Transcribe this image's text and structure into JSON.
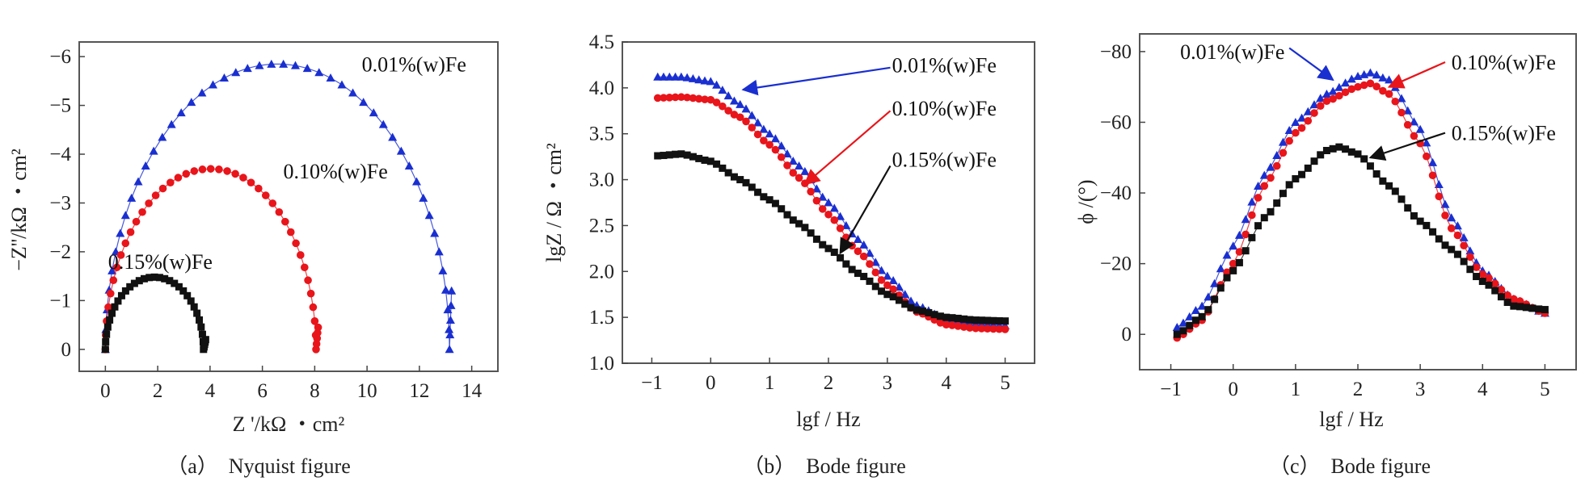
{
  "chart_data": [
    {
      "type": "scatter",
      "panel": "a",
      "caption": "（a）　Nyquist figure",
      "xlabel": "Z '/kΩ ・cm²",
      "ylabel": "−Z''/kΩ ・cm²",
      "xlim": [
        -1,
        15
      ],
      "ylim": [
        0.45,
        -6.3
      ],
      "xticks": [
        0,
        2,
        4,
        6,
        8,
        10,
        12,
        14
      ],
      "yticks": [
        0,
        -1,
        -2,
        -3,
        -4,
        -5,
        -6
      ],
      "xtick_labels": [
        "0",
        "2",
        "4",
        "6",
        "8",
        "10",
        "12",
        "14"
      ],
      "ytick_labels": [
        "0",
        "−1",
        "−2",
        "−3",
        "−4",
        "−5",
        "−6"
      ],
      "series": [
        {
          "name": "0.01%(w)Fe",
          "color": "#1a2fd0",
          "marker": "triangle",
          "params": {
            "R": 13.15,
            "peak": 5.85,
            "tail": 1.2,
            "tailDrop": 0.9,
            "n": 45
          },
          "label": {
            "text": "0.01%(w)Fe",
            "x": 9.8,
            "y": -5.7,
            "anchor": "start"
          }
        },
        {
          "name": "0.10%(w)Fe",
          "color": "#e8151b",
          "marker": "circle",
          "params": {
            "R": 8.05,
            "peak": 3.7,
            "tail": 0.45,
            "tailDrop": 0.3,
            "n": 40
          },
          "label": {
            "text": "0.10%(w)Fe",
            "x": 6.8,
            "y": -3.5,
            "anchor": "start"
          }
        },
        {
          "name": "0.15%(w)Fe",
          "color": "#111111",
          "marker": "square",
          "params": {
            "R": 3.75,
            "peak": 1.48,
            "tail": 0.2,
            "tailDrop": 0.2,
            "n": 30
          },
          "label": {
            "text": "0.15%(w)Fe",
            "x": 2.1,
            "y": -1.65,
            "anchor": "middle"
          }
        }
      ]
    },
    {
      "type": "scatter",
      "panel": "b",
      "caption": "（b）　Bode figure",
      "xlabel": "lgf / Hz",
      "ylabel": "lgZ / Ω ・cm²",
      "xlim": [
        -1.5,
        5.5
      ],
      "ylim": [
        1.0,
        4.5
      ],
      "xticks": [
        -1,
        0,
        1,
        2,
        3,
        4,
        5
      ],
      "yticks": [
        1.0,
        1.5,
        2.0,
        2.5,
        3.0,
        3.5,
        4.0,
        4.5
      ],
      "xtick_labels": [
        "−1",
        "0",
        "1",
        "2",
        "3",
        "4",
        "5"
      ],
      "ytick_labels": [
        "1.0",
        "1.5",
        "2.0",
        "2.5",
        "3.0",
        "3.5",
        "4.0",
        "4.5"
      ],
      "series": [
        {
          "name": "0.01%(w)Fe",
          "color": "#1a2fd0",
          "marker": "triangle",
          "x": [
            -0.9,
            -0.5,
            0,
            0.5,
            1,
            1.5,
            2,
            2.5,
            3,
            3.5,
            4,
            4.5,
            5
          ],
          "y": [
            4.12,
            4.12,
            4.07,
            3.82,
            3.5,
            3.15,
            2.75,
            2.35,
            1.95,
            1.63,
            1.48,
            1.43,
            1.41
          ]
        },
        {
          "name": "0.10%(w)Fe",
          "color": "#e8151b",
          "marker": "circle",
          "x": [
            -0.9,
            -0.5,
            0,
            0.5,
            1,
            1.5,
            2,
            2.5,
            3,
            3.5,
            4,
            4.5,
            5
          ],
          "y": [
            3.89,
            3.9,
            3.87,
            3.68,
            3.38,
            3.02,
            2.62,
            2.22,
            1.85,
            1.56,
            1.42,
            1.38,
            1.37
          ]
        },
        {
          "name": "0.15%(w)Fe",
          "color": "#111111",
          "marker": "square",
          "x": [
            -0.9,
            -0.5,
            0,
            0.5,
            1,
            1.5,
            2,
            2.5,
            3,
            3.5,
            4,
            4.5,
            5
          ],
          "y": [
            3.26,
            3.28,
            3.2,
            3.0,
            2.78,
            2.52,
            2.25,
            1.98,
            1.75,
            1.58,
            1.5,
            1.47,
            1.46
          ]
        }
      ],
      "annotations": [
        {
          "text": "0.01%(w)Fe",
          "color": "#1a2fd0",
          "text_x": 3.08,
          "text_y": 4.25,
          "arrow_from": [
            3.05,
            4.22
          ],
          "arrow_to": [
            0.55,
            3.98
          ]
        },
        {
          "text": "0.10%(w)Fe",
          "color": "#e8151b",
          "text_x": 3.08,
          "text_y": 3.78,
          "arrow_from": [
            3.05,
            3.75
          ],
          "arrow_to": [
            1.6,
            2.95
          ]
        },
        {
          "text": "0.15%(w)Fe",
          "color": "#111111",
          "text_x": 3.08,
          "text_y": 3.22,
          "arrow_from": [
            3.05,
            3.15
          ],
          "arrow_to": [
            2.2,
            2.2
          ]
        }
      ]
    },
    {
      "type": "scatter",
      "panel": "c",
      "caption": "（c）　Bode figure",
      "xlabel": "lgf / Hz",
      "ylabel": "ϕ /(°)",
      "xlim": [
        -1.5,
        5.5
      ],
      "ylim": [
        10,
        -85
      ],
      "xticks": [
        -1,
        0,
        1,
        2,
        3,
        4,
        5
      ],
      "yticks": [
        0,
        -20,
        -40,
        -60,
        -80
      ],
      "xtick_labels": [
        "−1",
        "0",
        "1",
        "2",
        "3",
        "4",
        "5"
      ],
      "ytick_labels": [
        "0",
        "−20",
        "−40",
        "−60",
        "−80"
      ],
      "series": [
        {
          "name": "0.01%(w)Fe",
          "color": "#1a2fd0",
          "marker": "triangle",
          "x": [
            -0.9,
            -0.5,
            0,
            0.5,
            1,
            1.5,
            2,
            2.2,
            2.5,
            3,
            3.5,
            4,
            4.5,
            5
          ],
          "y": [
            -2,
            -8,
            -25,
            -45,
            -60,
            -68,
            -73,
            -74,
            -72,
            -58,
            -33,
            -18,
            -10,
            -6
          ]
        },
        {
          "name": "0.10%(w)Fe",
          "color": "#e8151b",
          "marker": "circle",
          "x": [
            -0.9,
            -0.5,
            0,
            0.5,
            1,
            1.5,
            2,
            2.2,
            2.5,
            3,
            3.5,
            4,
            4.5,
            5
          ],
          "y": [
            1,
            -4,
            -20,
            -42,
            -57,
            -66,
            -70,
            -71,
            -68,
            -54,
            -30,
            -17,
            -10,
            -6
          ]
        },
        {
          "name": "0.15%(w)Fe",
          "color": "#111111",
          "marker": "square",
          "x": [
            -0.9,
            -0.5,
            0,
            0.5,
            1,
            1.5,
            1.7,
            2,
            2.5,
            3,
            3.5,
            4,
            4.5,
            5
          ],
          "y": [
            0,
            -5,
            -18,
            -33,
            -44,
            -52,
            -53,
            -51,
            -42,
            -32,
            -24,
            -15,
            -8,
            -7
          ]
        }
      ],
      "annotations": [
        {
          "text": "0.01%(w)Fe",
          "color": "#1a2fd0",
          "text_x": -0.85,
          "text_y": -80,
          "arrow_from": [
            0.9,
            -81
          ],
          "arrow_to": [
            1.6,
            -72
          ]
        },
        {
          "text": "0.10%(w)Fe",
          "color": "#e8151b",
          "text_x": 3.5,
          "text_y": -77,
          "arrow_from": [
            3.4,
            -77
          ],
          "arrow_to": [
            2.5,
            -70
          ]
        },
        {
          "text": "0.15%(w)Fe",
          "color": "#111111",
          "text_x": 3.5,
          "text_y": -57,
          "arrow_from": [
            3.4,
            -57
          ],
          "arrow_to": [
            2.2,
            -50
          ]
        }
      ]
    }
  ]
}
